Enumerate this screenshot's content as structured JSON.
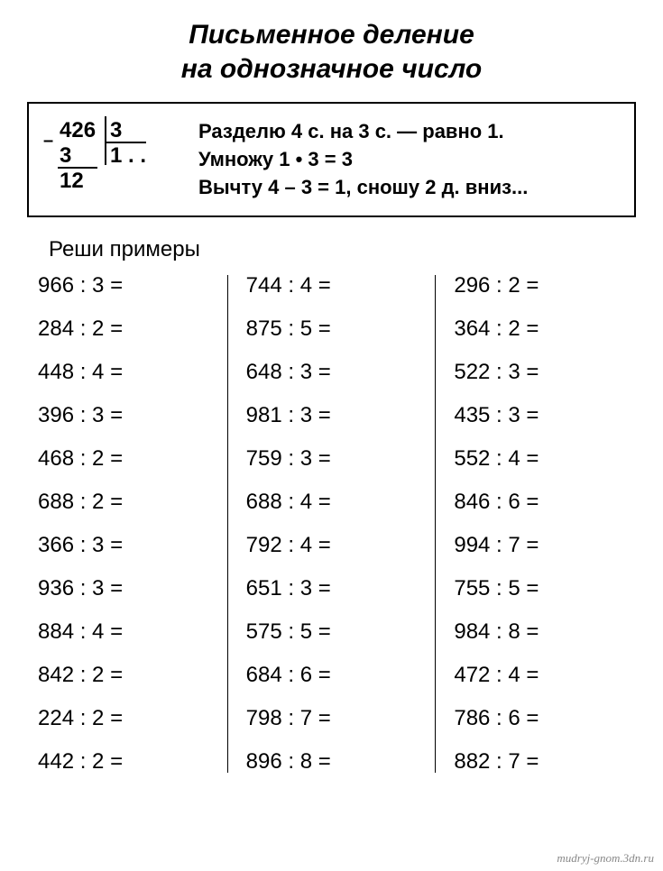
{
  "title": {
    "line1": "Письменное деление",
    "line2": "на однозначное число"
  },
  "example": {
    "dividend": "426",
    "divisor": "3",
    "sub": "3",
    "quotient": "1 . .",
    "remainder": "12",
    "explanation": {
      "line1": "Разделю 4 с. на 3 с. — равно 1.",
      "line2": "Умножу 1 • 3 = 3",
      "line3": "Вычту 4 – 3 = 1, сношу 2 д. вниз..."
    }
  },
  "subtitle": "Реши примеры",
  "columns": [
    {
      "items": [
        "966 : 3 =",
        "284 : 2 =",
        "448 : 4 =",
        "396 : 3 =",
        "468 : 2 =",
        "688 : 2 =",
        "366 : 3 =",
        "936 : 3 =",
        "884 : 4 =",
        "842 : 2 =",
        "224 : 2 =",
        "442 : 2 ="
      ]
    },
    {
      "items": [
        "744 : 4 =",
        "875 : 5 =",
        "648 : 3 =",
        "981 : 3 =",
        "759 : 3 =",
        "688 : 4 =",
        "792 : 4 =",
        "651 : 3 =",
        "575 : 5 =",
        "684 : 6 =",
        "798 : 7 =",
        "896 : 8 ="
      ]
    },
    {
      "items": [
        "296 : 2 =",
        "364 : 2 =",
        "522 : 3 =",
        "435 : 3 =",
        "552 : 4 =",
        "846 : 6 =",
        "994 : 7 =",
        "755 : 5 =",
        "984 : 8 =",
        "472 : 4 =",
        "786 : 6 =",
        "882 : 7 ="
      ]
    }
  ],
  "watermark": "mudryj-gnom.3dn.ru",
  "style": {
    "background_color": "#ffffff",
    "text_color": "#000000",
    "border_color": "#000000",
    "title_fontsize": 30,
    "body_fontsize": 24,
    "font_family": "Arial"
  }
}
